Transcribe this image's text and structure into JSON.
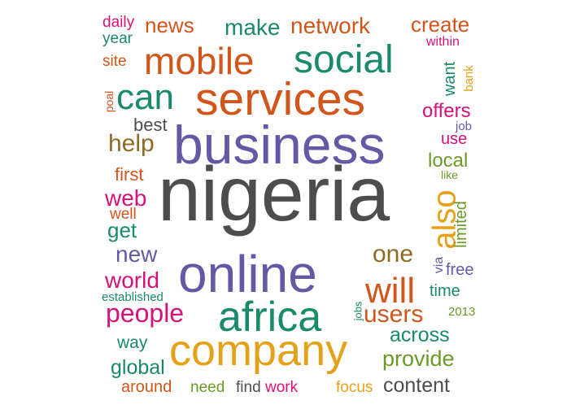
{
  "colors": {
    "gray": "#4d4d4d",
    "purple": "#6459a5",
    "orange": "#d2551b",
    "green": "#1a8a6b",
    "pink": "#d6127a",
    "mustard": "#e3a21a",
    "olive": "#6c9a28",
    "brown": "#8f6a24"
  },
  "words": [
    {
      "text": "nigeria"
    },
    {
      "text": "business"
    },
    {
      "text": "online"
    },
    {
      "text": "services"
    },
    {
      "text": "company"
    },
    {
      "text": "mobile"
    },
    {
      "text": "social"
    },
    {
      "text": "africa"
    },
    {
      "text": "can"
    },
    {
      "text": "will"
    },
    {
      "text": "also"
    },
    {
      "text": "people"
    },
    {
      "text": "users"
    },
    {
      "text": "one"
    },
    {
      "text": "help"
    },
    {
      "text": "news"
    },
    {
      "text": "network"
    },
    {
      "text": "make"
    },
    {
      "text": "create"
    },
    {
      "text": "world"
    },
    {
      "text": "new"
    },
    {
      "text": "web"
    },
    {
      "text": "get"
    },
    {
      "text": "provide"
    },
    {
      "text": "across"
    },
    {
      "text": "global"
    },
    {
      "text": "content"
    },
    {
      "text": "offers"
    },
    {
      "text": "local"
    },
    {
      "text": "best"
    },
    {
      "text": "first"
    },
    {
      "text": "limited"
    },
    {
      "text": "want"
    },
    {
      "text": "daily"
    },
    {
      "text": "year"
    },
    {
      "text": "site"
    },
    {
      "text": "within"
    },
    {
      "text": "bank"
    },
    {
      "text": "use"
    },
    {
      "text": "job"
    },
    {
      "text": "like"
    },
    {
      "text": "well"
    },
    {
      "text": "poal"
    },
    {
      "text": "free"
    },
    {
      "text": "via"
    },
    {
      "text": "time"
    },
    {
      "text": "established"
    },
    {
      "text": "jobs"
    },
    {
      "text": "2013"
    },
    {
      "text": "way"
    },
    {
      "text": "around"
    },
    {
      "text": "need"
    },
    {
      "text": "find"
    },
    {
      "text": "work"
    },
    {
      "text": "focus"
    }
  ]
}
